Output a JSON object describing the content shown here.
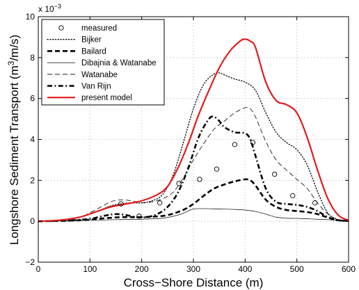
{
  "chart_data": {
    "type": "line",
    "title": "",
    "xlabel": "Cross−Shore Distance (m)",
    "ylabel": {
      "main": "Longshore Sediment Transport (m",
      "sup1": "3",
      "mid": "/m/s)"
    },
    "multiplier": {
      "base": "x 10",
      "exp": "−3"
    },
    "xlim": [
      0,
      600
    ],
    "ylim": [
      -2,
      10
    ],
    "x_ticks": [
      0,
      100,
      200,
      300,
      400,
      500,
      600
    ],
    "y_ticks": [
      -2,
      0,
      2,
      4,
      6,
      8,
      10
    ],
    "x_tick_labels": [
      "0",
      "100",
      "200",
      "300",
      "400",
      "500",
      "600"
    ],
    "y_tick_labels": [
      "−2",
      "0",
      "2",
      "4",
      "6",
      "8",
      "10"
    ],
    "grid": true,
    "legend_position": "top-left",
    "series": [
      {
        "name": "measured",
        "style": "marker-circle",
        "color": "#000000",
        "x": [
          160,
          195,
          235,
          272,
          312,
          345,
          380,
          415,
          457,
          492,
          535
        ],
        "y": [
          0.85,
          0.25,
          0.9,
          1.85,
          2.05,
          2.55,
          3.75,
          3.85,
          2.3,
          1.25,
          0.9
        ]
      },
      {
        "name": "Bijker",
        "style": "dotted",
        "color": "#000000",
        "x": [
          0,
          40,
          80,
          110,
          140,
          160,
          180,
          200,
          220,
          240,
          260,
          280,
          300,
          320,
          340,
          350,
          360,
          380,
          400,
          420,
          440,
          460,
          480,
          500,
          520,
          540,
          560,
          580,
          600
        ],
        "y": [
          0,
          0.05,
          0.2,
          0.45,
          0.75,
          0.85,
          0.9,
          0.9,
          1.0,
          1.3,
          2.2,
          3.8,
          5.5,
          6.7,
          7.2,
          7.25,
          7.15,
          6.95,
          6.8,
          6.4,
          5.3,
          4.35,
          3.85,
          3.5,
          2.75,
          1.45,
          0.4,
          0.07,
          0.02
        ]
      },
      {
        "name": "Bailard",
        "style": "dashed",
        "color": "#000000",
        "x": [
          0,
          60,
          100,
          130,
          160,
          190,
          220,
          250,
          280,
          300,
          320,
          340,
          360,
          380,
          400,
          410,
          420,
          440,
          460,
          480,
          500,
          520,
          540,
          560,
          580,
          600
        ],
        "y": [
          0,
          0.03,
          0.08,
          0.15,
          0.2,
          0.2,
          0.22,
          0.3,
          0.55,
          0.85,
          1.25,
          1.6,
          1.8,
          1.95,
          2.05,
          2.0,
          1.75,
          1.05,
          0.7,
          0.55,
          0.5,
          0.45,
          0.35,
          0.18,
          0.05,
          0.02
        ]
      },
      {
        "name": "Dibajnia & Watanabe",
        "style": "solid-thin",
        "color": "#000000",
        "x": [
          0,
          100,
          150,
          200,
          240,
          270,
          290,
          300,
          320,
          350,
          380,
          400,
          420,
          440,
          460,
          480,
          500,
          520,
          540,
          560,
          580,
          600
        ],
        "y": [
          0,
          0.05,
          0.08,
          0.1,
          0.15,
          0.3,
          0.5,
          0.6,
          0.62,
          0.6,
          0.58,
          0.55,
          0.48,
          0.35,
          0.2,
          0.15,
          0.14,
          0.12,
          0.1,
          0.08,
          0.04,
          0.02
        ]
      },
      {
        "name": "Watanabe",
        "style": "dashed-thin",
        "color": "#000000",
        "x": [
          0,
          40,
          80,
          110,
          140,
          160,
          180,
          200,
          220,
          240,
          260,
          280,
          300,
          320,
          340,
          360,
          380,
          400,
          410,
          420,
          440,
          460,
          480,
          500,
          520,
          540,
          560,
          580,
          600
        ],
        "y": [
          0,
          0.05,
          0.2,
          0.55,
          0.95,
          1.05,
          1.0,
          0.9,
          0.95,
          1.1,
          1.4,
          2.1,
          3.0,
          3.8,
          4.5,
          4.9,
          5.3,
          5.55,
          5.5,
          5.1,
          3.9,
          3.0,
          2.5,
          2.05,
          1.6,
          0.9,
          0.35,
          0.08,
          0.02
        ]
      },
      {
        "name": "Van Rijn",
        "style": "dashdot",
        "color": "#000000",
        "x": [
          0,
          60,
          100,
          130,
          150,
          170,
          190,
          210,
          230,
          250,
          270,
          290,
          310,
          330,
          340,
          350,
          360,
          380,
          400,
          410,
          420,
          440,
          460,
          480,
          500,
          520,
          540,
          560,
          580,
          600
        ],
        "y": [
          0,
          0.04,
          0.12,
          0.28,
          0.35,
          0.3,
          0.2,
          0.2,
          0.35,
          0.7,
          1.4,
          2.6,
          4.1,
          5.0,
          5.1,
          4.9,
          4.6,
          4.35,
          4.3,
          4.0,
          3.2,
          1.6,
          0.95,
          0.85,
          0.8,
          0.7,
          0.5,
          0.2,
          0.05,
          0.02
        ]
      },
      {
        "name": "present model",
        "style": "solid-thick",
        "color": "#e31a1c",
        "x": [
          0,
          40,
          80,
          110,
          140,
          170,
          200,
          230,
          250,
          270,
          290,
          310,
          330,
          350,
          370,
          390,
          400,
          410,
          420,
          440,
          460,
          480,
          500,
          520,
          540,
          560,
          580,
          600
        ],
        "y": [
          0,
          0.05,
          0.2,
          0.45,
          0.7,
          0.85,
          1.0,
          1.3,
          1.7,
          2.6,
          3.8,
          5.2,
          6.4,
          7.5,
          8.3,
          8.8,
          8.9,
          8.8,
          8.5,
          6.8,
          5.9,
          5.7,
          5.3,
          4.1,
          2.5,
          1.1,
          0.3,
          0.05
        ]
      }
    ]
  }
}
